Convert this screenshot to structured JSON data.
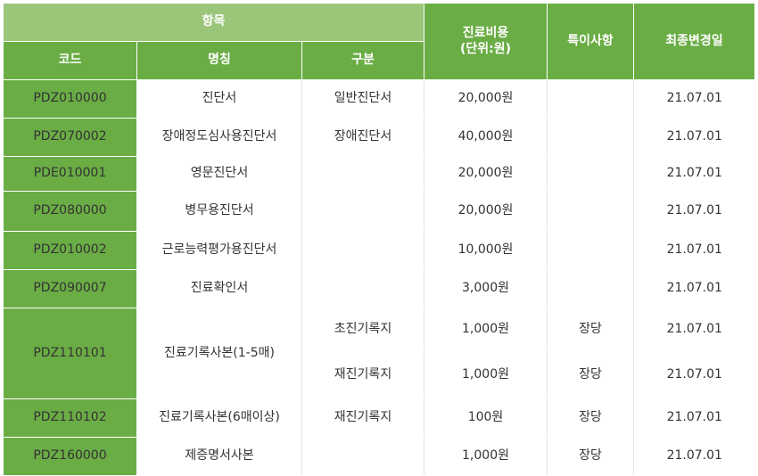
{
  "header": {
    "item_group": "항목",
    "code": "코드",
    "name": "명칭",
    "category": "구분",
    "fee_line1": "진료비용",
    "fee_line2": "(단위:원)",
    "note": "특이사항",
    "modified": "최종변경일"
  },
  "rows": [
    {
      "code": "PDZ010000",
      "name": "진단서",
      "category": "일반진단서",
      "fee": "20,000원",
      "note": "",
      "date": "21.07.01"
    },
    {
      "code": "PDZ070002",
      "name": "장애정도심사용진단서",
      "category": "장애진단서",
      "fee": "40,000원",
      "note": "",
      "date": "21.07.01"
    },
    {
      "code": "PDE010001",
      "name": "영문진단서",
      "category": "",
      "fee": "20,000원",
      "note": "",
      "date": "21.07.01"
    },
    {
      "code": "PDZ080000",
      "name": "병무용진단서",
      "category": "",
      "fee": "20,000원",
      "note": "",
      "date": "21.07.01"
    },
    {
      "code": "PDZ010002",
      "name": "근로능력평가용진단서",
      "category": "",
      "fee": "10,000원",
      "note": "",
      "date": "21.07.01"
    },
    {
      "code": "PDZ090007",
      "name": "진료확인서",
      "category": "",
      "fee": "3,000원",
      "note": "",
      "date": "21.07.01"
    },
    {
      "code": "PDZ110101",
      "name": "진료기록사본(1-5매)",
      "category": "초진기록지",
      "fee": "1,000원",
      "note": "장당",
      "date": "21.07.01"
    },
    {
      "code": "",
      "name": "",
      "category": "재진기록지",
      "fee": "1,000원",
      "note": "장당",
      "date": "21.07.01"
    },
    {
      "code": "PDZ110102",
      "name": "진료기록사본(6매이상)",
      "category": "재진기록지",
      "fee": "100원",
      "note": "장당",
      "date": "21.07.01"
    },
    {
      "code": "PDZ160000",
      "name": "제증명서사본",
      "category": "",
      "fee": "1,000원",
      "note": "장당",
      "date": "21.07.01"
    }
  ]
}
